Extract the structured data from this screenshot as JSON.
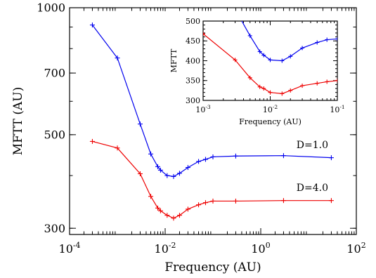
{
  "chart_data": [
    {
      "type": "line",
      "role": "main",
      "xlabel": "Frequency (AU)",
      "ylabel": "MFTT (AU)",
      "xscale": "log",
      "yscale": "log",
      "xlim": [
        0.0001,
        100
      ],
      "ylim": [
        290,
        1000
      ],
      "x_ticks": [
        {
          "value": 0.0001,
          "base": "10",
          "exp": "-4"
        },
        {
          "value": 0.01,
          "base": "10",
          "exp": "-2"
        },
        {
          "value": 1,
          "base": "10",
          "exp": "0"
        },
        {
          "value": 100,
          "base": "10",
          "exp": "2"
        }
      ],
      "y_ticks": [
        {
          "value": 300,
          "label": "300"
        },
        {
          "value": 500,
          "label": "500"
        },
        {
          "value": 700,
          "label": "700"
        },
        {
          "value": 1000,
          "label": "1000"
        }
      ],
      "series": [
        {
          "color": "#0000ee",
          "points": [
            [
              0.0003,
              910
            ],
            [
              0.001,
              760
            ],
            [
              0.003,
              530
            ],
            [
              0.005,
              450
            ],
            [
              0.007,
              420
            ],
            [
              0.008,
              412
            ],
            [
              0.011,
              400
            ],
            [
              0.015,
              398
            ],
            [
              0.02,
              405
            ],
            [
              0.03,
              418
            ],
            [
              0.05,
              432
            ],
            [
              0.07,
              437
            ],
            [
              0.1,
              443
            ],
            [
              0.3,
              445
            ],
            [
              3,
              446
            ],
            [
              30,
              441
            ]
          ]
        },
        {
          "color": "#ee0000",
          "points": [
            [
              0.0003,
              482
            ],
            [
              0.001,
              465
            ],
            [
              0.003,
              404
            ],
            [
              0.005,
              357
            ],
            [
              0.007,
              335
            ],
            [
              0.008,
              330
            ],
            [
              0.011,
              322
            ],
            [
              0.015,
              317
            ],
            [
              0.02,
              322
            ],
            [
              0.03,
              333
            ],
            [
              0.05,
              341
            ],
            [
              0.07,
              345
            ],
            [
              0.1,
              348
            ],
            [
              0.3,
              348
            ],
            [
              3,
              349
            ],
            [
              30,
              349
            ]
          ]
        }
      ],
      "annotations": [
        {
          "text": "D=1.0",
          "x": 12,
          "y": 465
        },
        {
          "text": "D=4.0",
          "x": 12,
          "y": 368
        }
      ]
    },
    {
      "type": "line",
      "role": "inset",
      "xlabel": "Frequency (AU)",
      "ylabel": "MFTT",
      "xscale": "log",
      "yscale": "linear",
      "xlim": [
        0.001,
        0.1
      ],
      "ylim": [
        300,
        500
      ],
      "x_ticks": [
        {
          "value": 0.001,
          "base": "10",
          "exp": "-3"
        },
        {
          "value": 0.01,
          "base": "10",
          "exp": "-2"
        },
        {
          "value": 0.1,
          "base": "10",
          "exp": "-1"
        }
      ],
      "y_ticks": [
        {
          "value": 300,
          "label": "300"
        },
        {
          "value": 350,
          "label": "350"
        },
        {
          "value": 400,
          "label": "400"
        },
        {
          "value": 450,
          "label": "450"
        },
        {
          "value": 500,
          "label": "500"
        }
      ],
      "series": [
        {
          "color": "#0000ee",
          "points": [
            [
              0.003,
              530
            ],
            [
              0.005,
              463
            ],
            [
              0.007,
              423
            ],
            [
              0.008,
              414
            ],
            [
              0.01,
              402
            ],
            [
              0.015,
              400
            ],
            [
              0.02,
              411
            ],
            [
              0.03,
              432
            ],
            [
              0.05,
              446
            ],
            [
              0.07,
              453
            ],
            [
              0.1,
              455
            ]
          ]
        },
        {
          "color": "#ee0000",
          "points": [
            [
              0.001,
              468
            ],
            [
              0.003,
              402
            ],
            [
              0.005,
              357
            ],
            [
              0.007,
              334
            ],
            [
              0.008,
              330
            ],
            [
              0.01,
              320
            ],
            [
              0.015,
              317
            ],
            [
              0.02,
              325
            ],
            [
              0.03,
              337
            ],
            [
              0.05,
              343
            ],
            [
              0.07,
              347
            ],
            [
              0.1,
              350
            ]
          ]
        }
      ]
    }
  ]
}
